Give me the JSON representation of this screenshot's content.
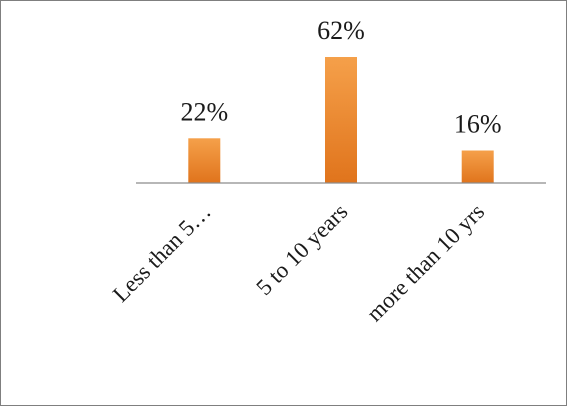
{
  "chart_data": {
    "type": "bar",
    "title": "",
    "xlabel": "",
    "ylabel": "",
    "categories": [
      "Less than 5…",
      "5 to 10 years",
      "more than 10 yrs"
    ],
    "values": [
      22,
      62,
      16
    ],
    "data_labels": [
      "22%",
      "62%",
      "16%"
    ],
    "unit": "%",
    "ylim": [
      0,
      62
    ],
    "grid": false,
    "legend": "none",
    "bar_color_top": "#f5a04a",
    "bar_color_bottom": "#e0741c"
  }
}
